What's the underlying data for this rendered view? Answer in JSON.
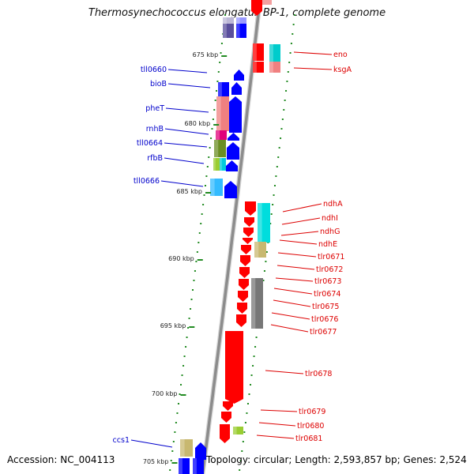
{
  "title": "Thermosynechococcus elongatus BP-1, complete genome",
  "footer": {
    "accession_label": "Accession:",
    "accession": "NC_004113",
    "topology_label": "Topology:",
    "topology": "circular;",
    "length_label": "Length:",
    "length": "2,593,857 bp;",
    "genes_label": "Genes:",
    "genes": "2,524"
  },
  "colors": {
    "backbone": "#8c8c8c",
    "tick": "#228b22",
    "reverse_label": "#0000cc",
    "forward_label": "#dd0000",
    "forward_gene": "#ff0000",
    "reverse_gene": "#0000ff"
  },
  "scale_labels": [
    "675 kbp",
    "680 kbp",
    "685 kbp",
    "690 kbp",
    "695 kbp",
    "700 kbp",
    "705 kbp"
  ],
  "reverse_genes": [
    "tll0660",
    "bioB",
    "pheT",
    "rnhB",
    "tll0664",
    "rfbB",
    "tll0666",
    "ccs1"
  ],
  "forward_genes": [
    "eno",
    "ksgA",
    "ndhA",
    "ndhI",
    "ndhG",
    "ndhE",
    "tlr0671",
    "tlr0672",
    "tlr0673",
    "tlr0674",
    "tlr0675",
    "tlr0676",
    "tlr0677",
    "tlr0678",
    "tlr0679",
    "tlr0680",
    "tlr0681"
  ]
}
